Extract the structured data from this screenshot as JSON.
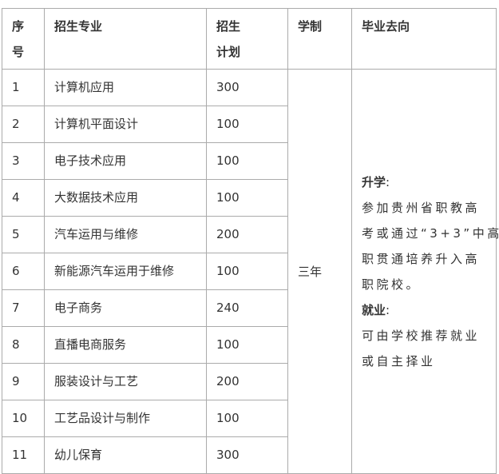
{
  "headers": {
    "index": [
      "序",
      "号"
    ],
    "major": "招生专业",
    "plan": [
      "招生",
      "计划"
    ],
    "duration": "学制",
    "destination": "毕业去向"
  },
  "rows": [
    {
      "index": "1",
      "major": "计算机应用",
      "plan": "300"
    },
    {
      "index": "2",
      "major": "计算机平面设计",
      "plan": "100"
    },
    {
      "index": "3",
      "major": "电子技术应用",
      "plan": "100"
    },
    {
      "index": "4",
      "major": "大数据技术应用",
      "plan": "100"
    },
    {
      "index": "5",
      "major": "汽车运用与维修",
      "plan": "200"
    },
    {
      "index": "6",
      "major": "新能源汽车运用于维修",
      "plan": "100"
    },
    {
      "index": "7",
      "major": "电子商务",
      "plan": "240"
    },
    {
      "index": "8",
      "major": "直播电商服务",
      "plan": "100"
    },
    {
      "index": "9",
      "major": "服装设计与工艺",
      "plan": "200"
    },
    {
      "index": "10",
      "major": "工艺品设计与制作",
      "plan": "100"
    },
    {
      "index": "11",
      "major": "幼儿保育",
      "plan": "300"
    }
  ],
  "duration": "三年",
  "destination": {
    "further_study_label": "升学",
    "further_study_lines": [
      "参加贵州省职教高",
      "考或通过“3+3”中高",
      "职贯通培养升入高",
      "职院校。"
    ],
    "employment_label": "就业",
    "employment_lines": [
      "可由学校推荐就业",
      "或自主择业"
    ],
    "colon": ":"
  }
}
